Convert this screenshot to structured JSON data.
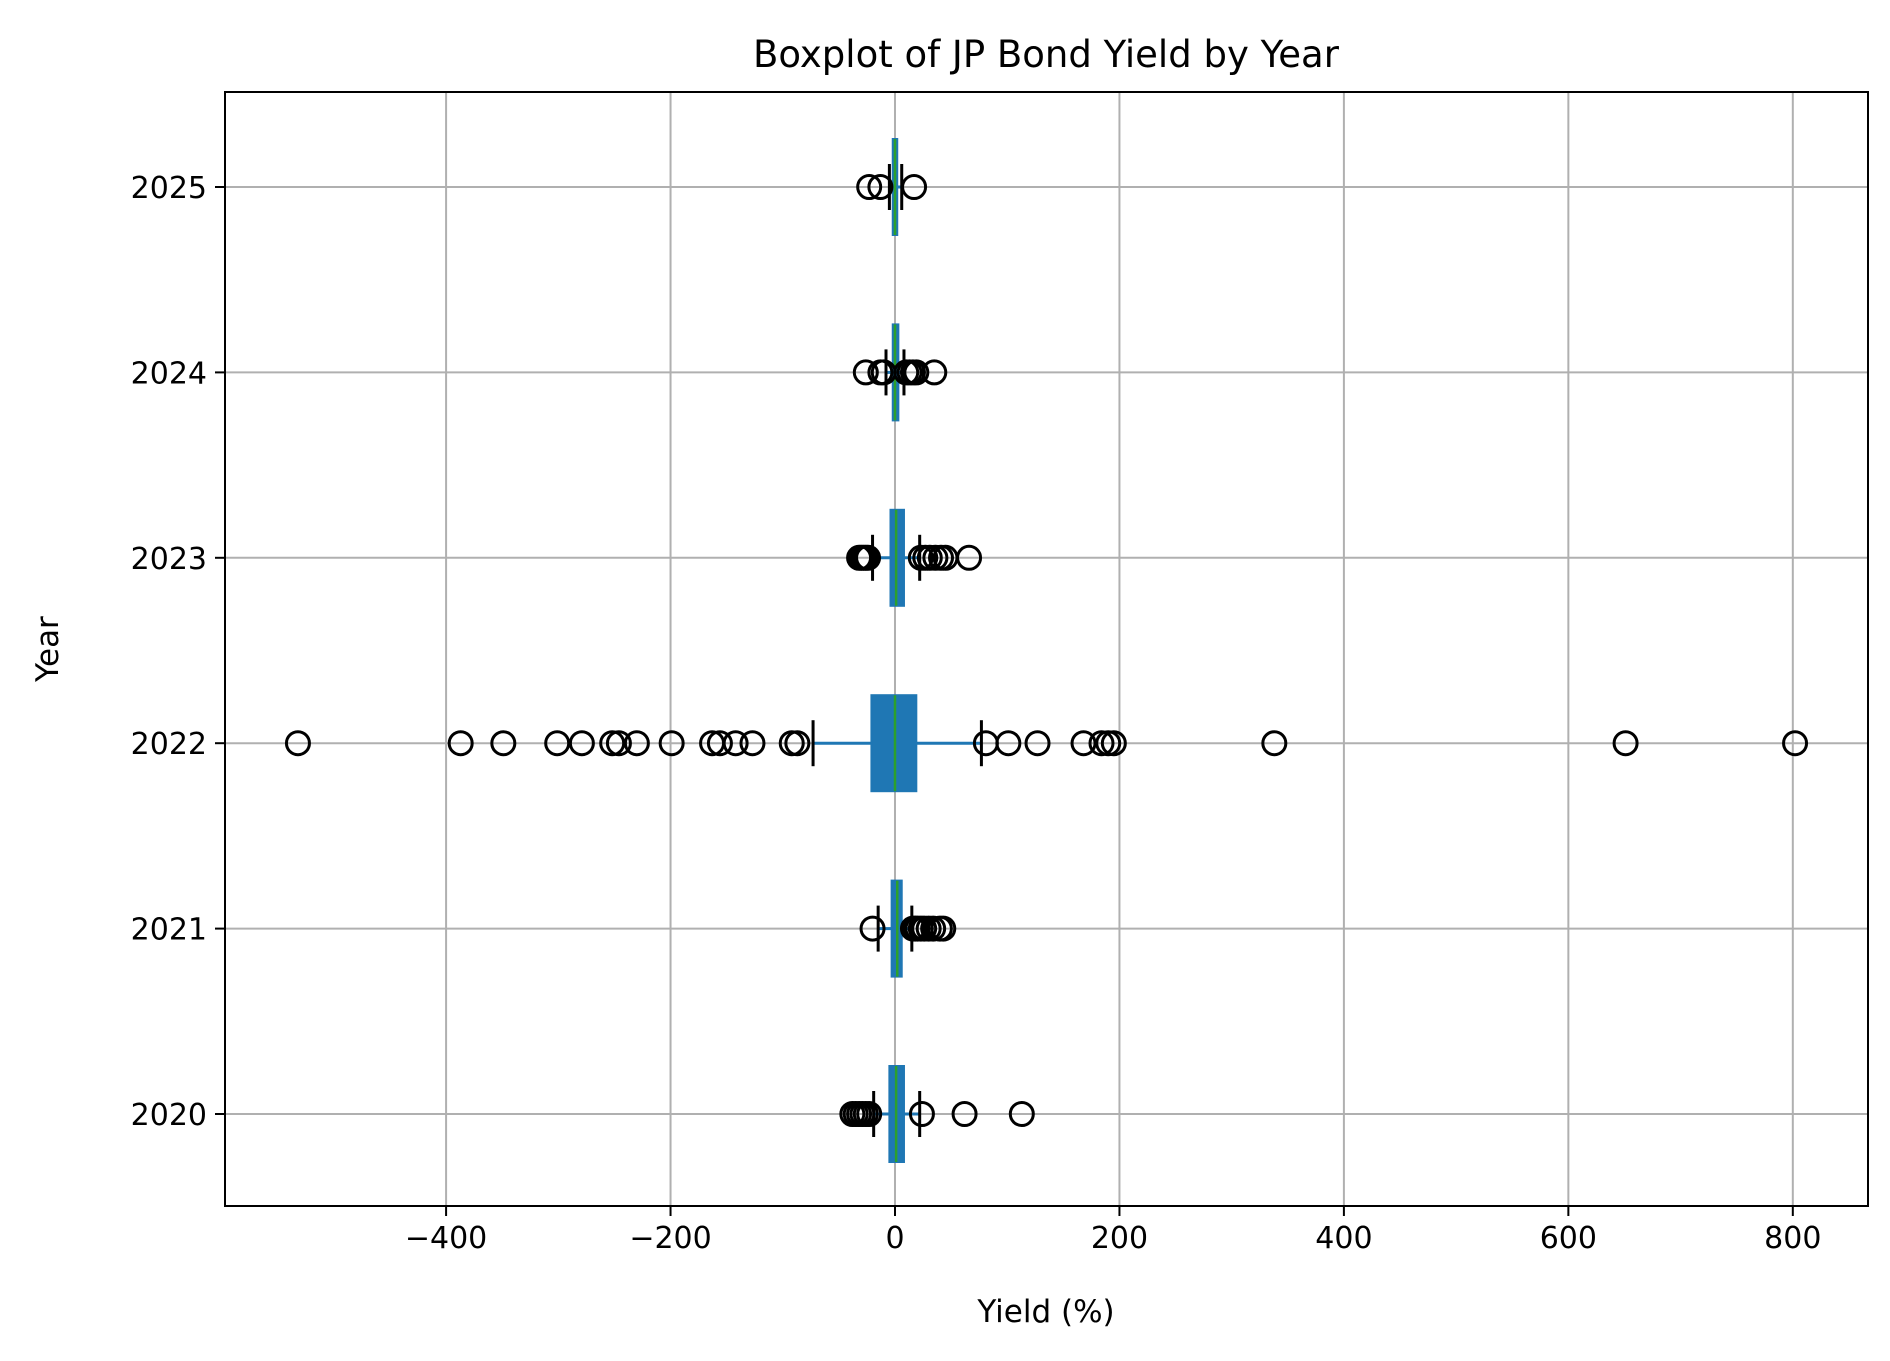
{
  "chart_data": {
    "type": "boxplot",
    "orientation": "horizontal",
    "title": "Boxplot of JP Bond Yield by Year",
    "xlabel": "Yield (%)",
    "ylabel": "Year",
    "xlim": [
      -597,
      867
    ],
    "x_ticks": [
      -400,
      -200,
      0,
      200,
      400,
      600,
      800
    ],
    "x_tick_labels": [
      "−400",
      "−200",
      "0",
      "200",
      "400",
      "600",
      "800"
    ],
    "grid": true,
    "colors": {
      "box_fill": "#1f77b4",
      "box_edge": "#1f77b4",
      "whisker": "#1f77b4",
      "cap": "#000000",
      "median": "#2ca02c",
      "flier": "#000000",
      "grid": "#b0b0b0"
    },
    "categories": [
      "2020",
      "2021",
      "2022",
      "2023",
      "2024",
      "2025"
    ],
    "boxes": [
      {
        "year": "2020",
        "whislo": -19,
        "q1": -5,
        "median": 1,
        "q3": 8,
        "whishi": 22,
        "fliers": [
          -38,
          -35,
          -32,
          -29,
          -26,
          -23,
          24,
          62,
          113
        ]
      },
      {
        "year": "2021",
        "whislo": -15,
        "q1": -3,
        "median": 2,
        "q3": 6,
        "whishi": 15,
        "fliers": [
          -20,
          16,
          18,
          20,
          23,
          26,
          30,
          34,
          40,
          43
        ]
      },
      {
        "year": "2022",
        "whislo": -73,
        "q1": -21,
        "median": 0,
        "q3": 19,
        "whishi": 77,
        "fliers": [
          -532,
          -387,
          -349,
          -301,
          -279,
          -252,
          -246,
          -230,
          -199,
          -163,
          -156,
          -142,
          -127,
          -92,
          -87,
          81,
          101,
          127,
          168,
          184,
          190,
          195,
          338,
          651,
          802
        ]
      },
      {
        "year": "2023",
        "whislo": -20,
        "q1": -4,
        "median": 1,
        "q3": 8,
        "whishi": 22,
        "fliers": [
          -32,
          -30,
          -28,
          -26,
          -24,
          23,
          27,
          31,
          36,
          41,
          45,
          66
        ]
      },
      {
        "year": "2024",
        "whislo": -8,
        "q1": -2,
        "median": 0,
        "q3": 3,
        "whishi": 8,
        "fliers": [
          -26,
          -13,
          -10,
          10,
          13,
          16,
          19,
          35
        ]
      },
      {
        "year": "2025",
        "whislo": -5,
        "q1": -2,
        "median": 0,
        "q3": 2,
        "whishi": 6,
        "fliers": [
          -23,
          -13,
          17
        ]
      }
    ]
  }
}
